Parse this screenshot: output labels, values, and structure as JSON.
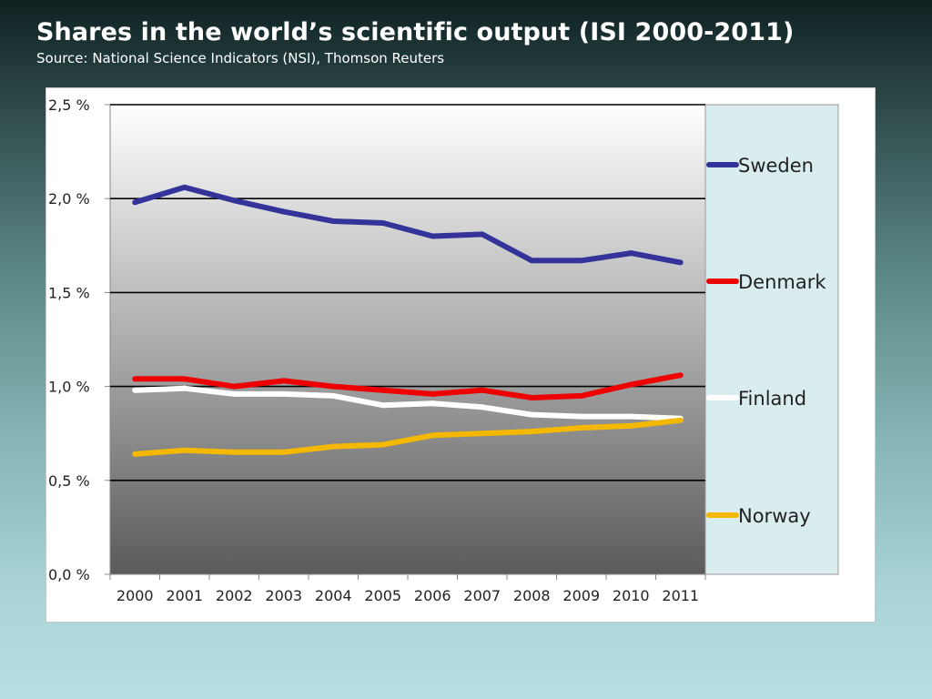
{
  "slide": {
    "title": "Shares in the world’s scientific output (ISI 2000-2011)",
    "subtitle": "Source: National Science Indicators (NSI), Thomson Reuters"
  },
  "chart_data": {
    "type": "line",
    "title": "",
    "xlabel": "",
    "ylabel": "",
    "categories": [
      "2000",
      "2001",
      "2002",
      "2003",
      "2004",
      "2005",
      "2006",
      "2007",
      "2008",
      "2009",
      "2010",
      "2011"
    ],
    "y_ticks": [
      0.0,
      0.5,
      1.0,
      1.5,
      2.0,
      2.5
    ],
    "y_tick_labels": [
      "0,0 %",
      "0,5 %",
      "1,0 %",
      "1,5 %",
      "2,0 %",
      "2,5 %"
    ],
    "ylim": [
      0,
      2.5
    ],
    "grid": "horizontal",
    "legend_position": "right",
    "series": [
      {
        "name": "Sweden",
        "color": "#333399",
        "values": [
          1.98,
          2.06,
          1.99,
          1.93,
          1.88,
          1.87,
          1.8,
          1.81,
          1.67,
          1.67,
          1.71,
          1.66
        ]
      },
      {
        "name": "Denmark",
        "color": "#ee0000",
        "values": [
          1.04,
          1.04,
          1.0,
          1.03,
          1.0,
          0.98,
          0.96,
          0.98,
          0.94,
          0.95,
          1.01,
          1.06
        ]
      },
      {
        "name": "Finland",
        "color": "#ffffff",
        "values": [
          0.98,
          0.99,
          0.96,
          0.96,
          0.95,
          0.9,
          0.91,
          0.89,
          0.85,
          0.84,
          0.84,
          0.83
        ]
      },
      {
        "name": "Norway",
        "color": "#f5b800",
        "values": [
          0.64,
          0.66,
          0.65,
          0.65,
          0.68,
          0.69,
          0.74,
          0.75,
          0.76,
          0.78,
          0.79,
          0.82
        ]
      }
    ]
  }
}
